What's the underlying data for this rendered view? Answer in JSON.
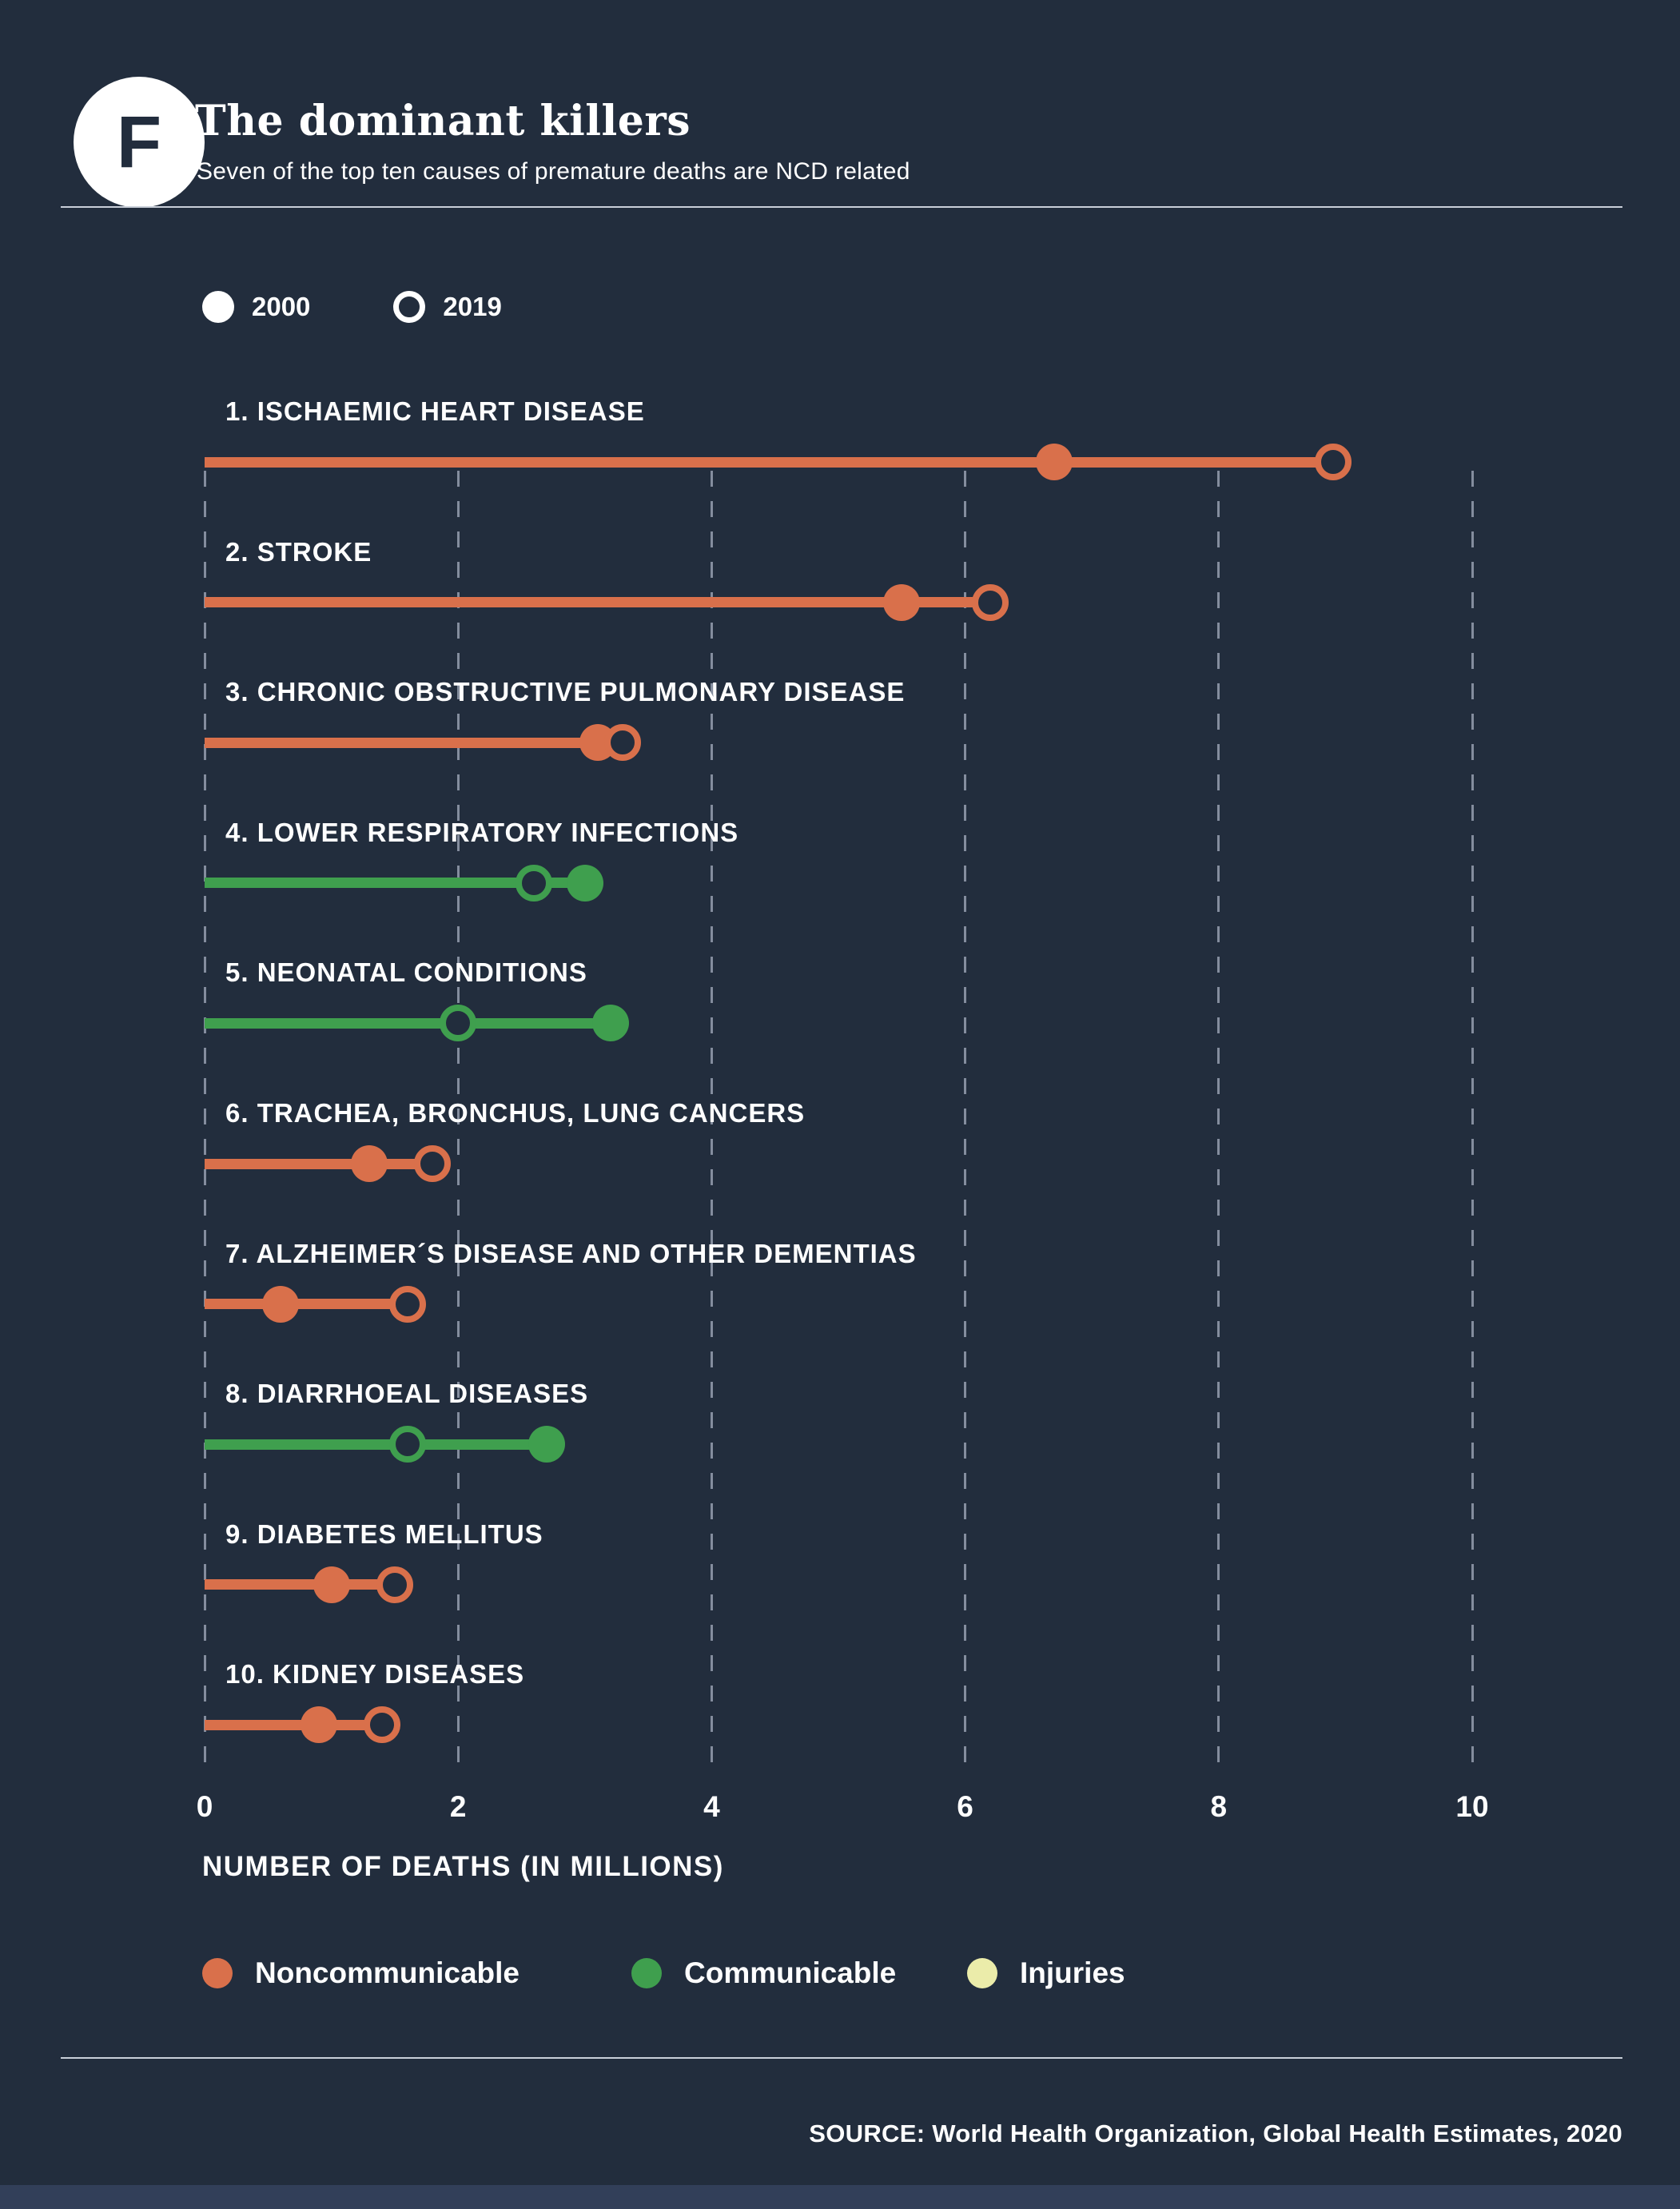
{
  "header": {
    "badge": "F",
    "title": "The dominant killers",
    "subtitle": "Seven of the top ten causes of premature deaths are NCD related"
  },
  "year_legend": [
    {
      "label": "2000",
      "marker": "filled-circle"
    },
    {
      "label": "2019",
      "marker": "open-circle"
    }
  ],
  "chart_data": {
    "type": "dumbbell",
    "title": "The dominant killers",
    "xlabel": "NUMBER OF DEATHS (IN MILLIONS)",
    "ylabel": "",
    "xlim": [
      0,
      10
    ],
    "x_ticks": [
      0,
      2,
      4,
      6,
      8,
      10
    ],
    "grid": "vertical-dashed",
    "series_years": [
      "2000",
      "2019"
    ],
    "marker_2000": "filled-circle",
    "marker_2019": "open-circle",
    "rows": [
      {
        "rank": 1,
        "label": "1. ISCHAEMIC HEART DISEASE",
        "category": "noncommunicable",
        "y2000": 6.7,
        "y2019": 8.9
      },
      {
        "rank": 2,
        "label": "2. STROKE",
        "category": "noncommunicable",
        "y2000": 5.5,
        "y2019": 6.2
      },
      {
        "rank": 3,
        "label": "3. CHRONIC OBSTRUCTIVE PULMONARY DISEASE",
        "category": "noncommunicable",
        "y2000": 3.1,
        "y2019": 3.3
      },
      {
        "rank": 4,
        "label": "4. LOWER RESPIRATORY INFECTIONS",
        "category": "communicable",
        "y2000": 3.0,
        "y2019": 2.6
      },
      {
        "rank": 5,
        "label": "5. NEONATAL CONDITIONS",
        "category": "communicable",
        "y2000": 3.2,
        "y2019": 2.0
      },
      {
        "rank": 6,
        "label": "6. TRACHEA, BRONCHUS, LUNG CANCERS",
        "category": "noncommunicable",
        "y2000": 1.3,
        "y2019": 1.8
      },
      {
        "rank": 7,
        "label": "7. ALZHEIMER´S DISEASE AND OTHER DEMENTIAS",
        "category": "noncommunicable",
        "y2000": 0.6,
        "y2019": 1.6
      },
      {
        "rank": 8,
        "label": "8. DIARRHOEAL DISEASES",
        "category": "communicable",
        "y2000": 2.7,
        "y2019": 1.6
      },
      {
        "rank": 9,
        "label": "9. DIABETES MELLITUS",
        "category": "noncommunicable",
        "y2000": 1.0,
        "y2019": 1.5
      },
      {
        "rank": 10,
        "label": "10. KIDNEY DISEASES",
        "category": "noncommunicable",
        "y2000": 0.9,
        "y2019": 1.4
      }
    ]
  },
  "category_legend": [
    {
      "label": "Noncommunicable",
      "category": "noncommunicable"
    },
    {
      "label": "Communicable",
      "category": "communicable"
    },
    {
      "label": "Injuries",
      "category": "injuries"
    }
  ],
  "colors": {
    "background": "#222d3d",
    "noncommunicable": "#d9704b",
    "communicable": "#3f9f4e",
    "injuries": "#ebecaa",
    "grid": "#848d9e",
    "text": "#ffffff"
  },
  "source": "SOURCE: World Health Organization, Global Health Estimates, 2020"
}
